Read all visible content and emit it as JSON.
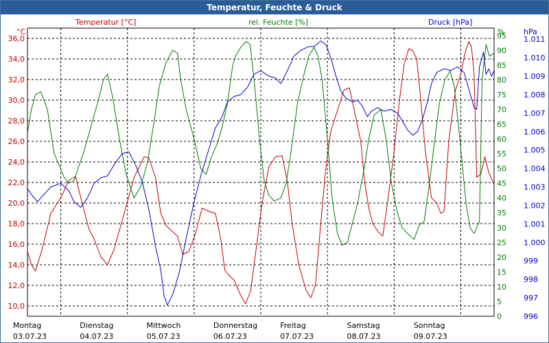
{
  "chart_data": {
    "type": "line",
    "title": "Temperatur, Feuchte & Druck",
    "colors": {
      "temperature": "#c00000",
      "humidity": "#007a00",
      "pressure": "#0000c0",
      "title_bg": "#2a5d97",
      "grid": "#000000"
    },
    "x_days": [
      {
        "day": "Montag",
        "date": "03.07.23"
      },
      {
        "day": "Dienstag",
        "date": "04.07.23"
      },
      {
        "day": "Mittwoch",
        "date": "05.07.23"
      },
      {
        "day": "Donnerstag",
        "date": "06.07.23"
      },
      {
        "day": "Freitag",
        "date": "07.07.23"
      },
      {
        "day": "Samstag",
        "date": "08.07.23"
      },
      {
        "day": "Sonntag",
        "date": "09.07.23"
      }
    ],
    "x_range": [
      0,
      7
    ],
    "axes": {
      "temperature": {
        "unit": "°C",
        "label": "Temperatur [°C]",
        "range": [
          9,
          37
        ],
        "ticks": [
          "10,0",
          "12,0",
          "14,0",
          "16,0",
          "18,0",
          "20,0",
          "22,0",
          "24,0",
          "26,0",
          "28,0",
          "30,0",
          "32,0",
          "34,0",
          "36,0"
        ]
      },
      "humidity": {
        "unit": "%",
        "label": "rel. Feuchte [%]",
        "range": [
          0,
          97.5
        ],
        "ticks": [
          "0",
          "5",
          "10",
          "15",
          "20",
          "25",
          "30",
          "35",
          "40",
          "45",
          "50",
          "55",
          "60",
          "65",
          "70",
          "75",
          "80",
          "85",
          "90",
          "95"
        ]
      },
      "pressure": {
        "unit": "hPa",
        "label": "Druck [hPa]",
        "range": [
          996,
          1011.6
        ],
        "ticks": [
          "996",
          "997",
          "998",
          "999",
          "1.000",
          "1.001",
          "1.002",
          "1.003",
          "1.004",
          "1.005",
          "1.006",
          "1.007",
          "1.008",
          "1.009",
          "1.010",
          "1.011"
        ]
      }
    },
    "series": [
      {
        "name": "Temperatur",
        "axis": "temperature",
        "color": "#c00000",
        "points": [
          [
            0,
            15.3
          ],
          [
            0.06,
            14.0
          ],
          [
            0.12,
            13.4
          ],
          [
            0.22,
            15.5
          ],
          [
            0.35,
            19.0
          ],
          [
            0.5,
            20.5
          ],
          [
            0.62,
            22.2
          ],
          [
            0.72,
            22.6
          ],
          [
            0.82,
            20.0
          ],
          [
            0.92,
            17.5
          ],
          [
            1.0,
            16.5
          ],
          [
            1.1,
            14.8
          ],
          [
            1.2,
            14.0
          ],
          [
            1.3,
            15.5
          ],
          [
            1.45,
            19.0
          ],
          [
            1.6,
            22.5
          ],
          [
            1.75,
            24.5
          ],
          [
            1.82,
            24.4
          ],
          [
            1.92,
            22.5
          ],
          [
            2.0,
            19.0
          ],
          [
            2.08,
            17.8
          ],
          [
            2.18,
            17.2
          ],
          [
            2.25,
            16.8
          ],
          [
            2.33,
            15.0
          ],
          [
            2.42,
            15.3
          ],
          [
            2.52,
            17.0
          ],
          [
            2.62,
            19.5
          ],
          [
            2.72,
            19.2
          ],
          [
            2.82,
            19.0
          ],
          [
            2.9,
            16.5
          ],
          [
            2.96,
            13.5
          ],
          [
            3.02,
            13.0
          ],
          [
            3.1,
            12.5
          ],
          [
            3.2,
            11.0
          ],
          [
            3.27,
            10.2
          ],
          [
            3.35,
            11.5
          ],
          [
            3.42,
            15.0
          ],
          [
            3.52,
            20.0
          ],
          [
            3.62,
            23.5
          ],
          [
            3.72,
            24.5
          ],
          [
            3.82,
            24.6
          ],
          [
            3.9,
            22.0
          ],
          [
            3.97,
            18.0
          ],
          [
            4.07,
            14.0
          ],
          [
            4.18,
            11.5
          ],
          [
            4.25,
            10.8
          ],
          [
            4.32,
            12.0
          ],
          [
            4.4,
            18.0
          ],
          [
            4.47,
            23.0
          ],
          [
            4.55,
            27.0
          ],
          [
            4.65,
            29.0
          ],
          [
            4.75,
            31.0
          ],
          [
            4.83,
            31.2
          ],
          [
            4.92,
            28.5
          ],
          [
            5.0,
            26.0
          ],
          [
            5.06,
            22.0
          ],
          [
            5.12,
            19.5
          ],
          [
            5.18,
            18.0
          ],
          [
            5.26,
            17.2
          ],
          [
            5.33,
            16.8
          ],
          [
            5.4,
            20.0
          ],
          [
            5.5,
            25.0
          ],
          [
            5.58,
            30.0
          ],
          [
            5.65,
            33.5
          ],
          [
            5.72,
            35.0
          ],
          [
            5.78,
            34.8
          ],
          [
            5.84,
            34.0
          ],
          [
            5.9,
            30.0
          ],
          [
            5.97,
            25.0
          ],
          [
            6.06,
            20.5
          ],
          [
            6.14,
            20.0
          ],
          [
            6.2,
            19.0
          ],
          [
            6.25,
            19.2
          ],
          [
            6.32,
            26.0
          ],
          [
            6.42,
            31.0
          ],
          [
            6.5,
            32.5
          ],
          [
            6.56,
            34.5
          ],
          [
            6.62,
            35.7
          ],
          [
            6.66,
            35.2
          ],
          [
            6.7,
            32.5
          ],
          [
            6.74,
            22.5
          ],
          [
            6.8,
            22.8
          ],
          [
            6.86,
            24.5
          ],
          [
            6.92,
            23.0
          ],
          [
            7.0,
            21.8
          ]
        ]
      },
      {
        "name": "rel. Feuchte",
        "axis": "humidity",
        "color": "#007a00",
        "points": [
          [
            0,
            62
          ],
          [
            0.06,
            70
          ],
          [
            0.12,
            75
          ],
          [
            0.2,
            76
          ],
          [
            0.3,
            70
          ],
          [
            0.4,
            55
          ],
          [
            0.48,
            51
          ],
          [
            0.55,
            47
          ],
          [
            0.62,
            45
          ],
          [
            0.7,
            46
          ],
          [
            0.76,
            50
          ],
          [
            0.85,
            56
          ],
          [
            0.95,
            64
          ],
          [
            1.05,
            72
          ],
          [
            1.14,
            80
          ],
          [
            1.2,
            82
          ],
          [
            1.28,
            74
          ],
          [
            1.38,
            60
          ],
          [
            1.48,
            48
          ],
          [
            1.6,
            40
          ],
          [
            1.7,
            44
          ],
          [
            1.8,
            52
          ],
          [
            1.9,
            66
          ],
          [
            1.98,
            78
          ],
          [
            2.08,
            86
          ],
          [
            2.18,
            90
          ],
          [
            2.25,
            89
          ],
          [
            2.3,
            80
          ],
          [
            2.38,
            70
          ],
          [
            2.5,
            60
          ],
          [
            2.6,
            50
          ],
          [
            2.68,
            48
          ],
          [
            2.76,
            54
          ],
          [
            2.84,
            58
          ],
          [
            2.92,
            64
          ],
          [
            3.0,
            72
          ],
          [
            3.08,
            85
          ],
          [
            3.12,
            88
          ],
          [
            3.2,
            91
          ],
          [
            3.28,
            93
          ],
          [
            3.34,
            92
          ],
          [
            3.4,
            80
          ],
          [
            3.48,
            60
          ],
          [
            3.55,
            46
          ],
          [
            3.62,
            41
          ],
          [
            3.7,
            39
          ],
          [
            3.8,
            40
          ],
          [
            3.88,
            45
          ],
          [
            3.95,
            55
          ],
          [
            4.05,
            72
          ],
          [
            4.15,
            82
          ],
          [
            4.22,
            88
          ],
          [
            4.3,
            91
          ],
          [
            4.36,
            88
          ],
          [
            4.42,
            80
          ],
          [
            4.5,
            60
          ],
          [
            4.57,
            40
          ],
          [
            4.65,
            28
          ],
          [
            4.72,
            24
          ],
          [
            4.8,
            25
          ],
          [
            4.88,
            32
          ],
          [
            4.95,
            38
          ],
          [
            5.05,
            50
          ],
          [
            5.12,
            60
          ],
          [
            5.2,
            68
          ],
          [
            5.3,
            70
          ],
          [
            5.38,
            60
          ],
          [
            5.46,
            45
          ],
          [
            5.55,
            35
          ],
          [
            5.62,
            30
          ],
          [
            5.7,
            28
          ],
          [
            5.8,
            26
          ],
          [
            5.88,
            31
          ],
          [
            5.95,
            32
          ],
          [
            6.03,
            45
          ],
          [
            6.1,
            58
          ],
          [
            6.18,
            72
          ],
          [
            6.26,
            80
          ],
          [
            6.34,
            83
          ],
          [
            6.4,
            78
          ],
          [
            6.46,
            66
          ],
          [
            6.52,
            52
          ],
          [
            6.58,
            38
          ],
          [
            6.64,
            30
          ],
          [
            6.7,
            28
          ],
          [
            6.78,
            32
          ],
          [
            6.82,
            80
          ],
          [
            6.88,
            92
          ],
          [
            6.93,
            88
          ],
          [
            7.0,
            89
          ]
        ]
      },
      {
        "name": "Druck",
        "axis": "pressure",
        "color": "#0000c0",
        "points": [
          [
            0,
            1002.9
          ],
          [
            0.08,
            1002.5
          ],
          [
            0.15,
            1002.2
          ],
          [
            0.25,
            1002.6
          ],
          [
            0.35,
            1003.0
          ],
          [
            0.5,
            1003.2
          ],
          [
            0.62,
            1002.8
          ],
          [
            0.7,
            1002.2
          ],
          [
            0.8,
            1001.9
          ],
          [
            0.9,
            1002.4
          ],
          [
            1.0,
            1003.2
          ],
          [
            1.1,
            1003.5
          ],
          [
            1.2,
            1003.6
          ],
          [
            1.3,
            1004.2
          ],
          [
            1.42,
            1004.8
          ],
          [
            1.52,
            1004.9
          ],
          [
            1.62,
            1004.2
          ],
          [
            1.72,
            1003.3
          ],
          [
            1.82,
            1001.8
          ],
          [
            1.92,
            999.8
          ],
          [
            2.0,
            998.5
          ],
          [
            2.05,
            997.1
          ],
          [
            2.1,
            996.6
          ],
          [
            2.18,
            997.2
          ],
          [
            2.28,
            998.4
          ],
          [
            2.38,
            1000.2
          ],
          [
            2.5,
            1002.2
          ],
          [
            2.6,
            1003.6
          ],
          [
            2.7,
            1004.8
          ],
          [
            2.82,
            1006.2
          ],
          [
            2.92,
            1006.8
          ],
          [
            3.0,
            1007.6
          ],
          [
            3.1,
            1007.9
          ],
          [
            3.2,
            1008.0
          ],
          [
            3.3,
            1008.4
          ],
          [
            3.4,
            1009.1
          ],
          [
            3.5,
            1009.3
          ],
          [
            3.62,
            1009.0
          ],
          [
            3.72,
            1008.9
          ],
          [
            3.8,
            1008.6
          ],
          [
            3.9,
            1009.3
          ],
          [
            4.0,
            1010.1
          ],
          [
            4.1,
            1010.4
          ],
          [
            4.22,
            1010.6
          ],
          [
            4.3,
            1010.6
          ],
          [
            4.4,
            1010.9
          ],
          [
            4.48,
            1010.7
          ],
          [
            4.55,
            1010.0
          ],
          [
            4.62,
            1009.1
          ],
          [
            4.7,
            1008.2
          ],
          [
            4.78,
            1007.8
          ],
          [
            4.88,
            1007.6
          ],
          [
            4.95,
            1007.7
          ],
          [
            5.02,
            1007.4
          ],
          [
            5.1,
            1006.8
          ],
          [
            5.16,
            1007.1
          ],
          [
            5.25,
            1007.3
          ],
          [
            5.35,
            1007.1
          ],
          [
            5.45,
            1007.2
          ],
          [
            5.55,
            1007.0
          ],
          [
            5.62,
            1006.6
          ],
          [
            5.7,
            1006.1
          ],
          [
            5.78,
            1005.8
          ],
          [
            5.85,
            1006.0
          ],
          [
            5.92,
            1006.6
          ],
          [
            6.0,
            1007.6
          ],
          [
            6.06,
            1008.6
          ],
          [
            6.14,
            1009.2
          ],
          [
            6.25,
            1009.4
          ],
          [
            6.35,
            1009.3
          ],
          [
            6.45,
            1009.5
          ],
          [
            6.55,
            1009.2
          ],
          [
            6.62,
            1008.3
          ],
          [
            6.7,
            1007.3
          ],
          [
            6.74,
            1007.2
          ],
          [
            6.78,
            1009.5
          ],
          [
            6.84,
            1010.3
          ],
          [
            6.88,
            1009.1
          ],
          [
            6.92,
            1009.4
          ],
          [
            6.96,
            1009.0
          ],
          [
            7.0,
            1009.3
          ]
        ]
      }
    ]
  }
}
